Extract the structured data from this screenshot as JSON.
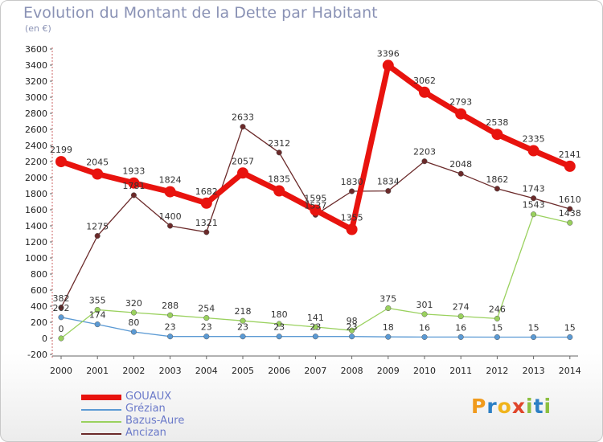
{
  "header": {
    "title": "Evolution du Montant de la Dette par Habitant",
    "subtitle": "(en €)"
  },
  "logo_text": "Proxiti",
  "chart_data": {
    "type": "line",
    "title": "Evolution du Montant de la Dette par Habitant",
    "subtitle": "(en €)",
    "x": [
      2000,
      2001,
      2002,
      2003,
      2004,
      2005,
      2006,
      2007,
      2008,
      2009,
      2010,
      2011,
      2012,
      2013,
      2014
    ],
    "ylim": [
      -200,
      3600
    ],
    "yticks": [
      -200,
      0,
      200,
      400,
      600,
      800,
      1000,
      1200,
      1400,
      1600,
      1800,
      2000,
      2200,
      2400,
      2600,
      2800,
      3000,
      3200,
      3400,
      3600
    ],
    "grid": false,
    "legend_position": "bottom-left",
    "series": [
      {
        "name": "GOUAUX",
        "color": "#e8130e",
        "emphasis": true,
        "values": [
          2199,
          2045,
          1933,
          1824,
          1682,
          2057,
          1835,
          1595,
          1355,
          3396,
          3062,
          2793,
          2538,
          2335,
          2141
        ]
      },
      {
        "name": "Grézian",
        "color": "#5b9ad4",
        "emphasis": false,
        "values": [
          262,
          174,
          80,
          23,
          23,
          23,
          23,
          23,
          23,
          18,
          16,
          16,
          15,
          15,
          15
        ]
      },
      {
        "name": "Bazus-Aure",
        "color": "#9ad15e",
        "emphasis": false,
        "values": [
          0,
          355,
          320,
          288,
          254,
          218,
          180,
          141,
          98,
          375,
          301,
          274,
          246,
          1543,
          1438
        ]
      },
      {
        "name": "Ancizan",
        "color": "#6b2a2a",
        "emphasis": false,
        "values": [
          382,
          1275,
          1781,
          1400,
          1321,
          2633,
          2312,
          1537,
          1830,
          1834,
          2203,
          2048,
          1862,
          1743,
          1610
        ]
      }
    ]
  }
}
